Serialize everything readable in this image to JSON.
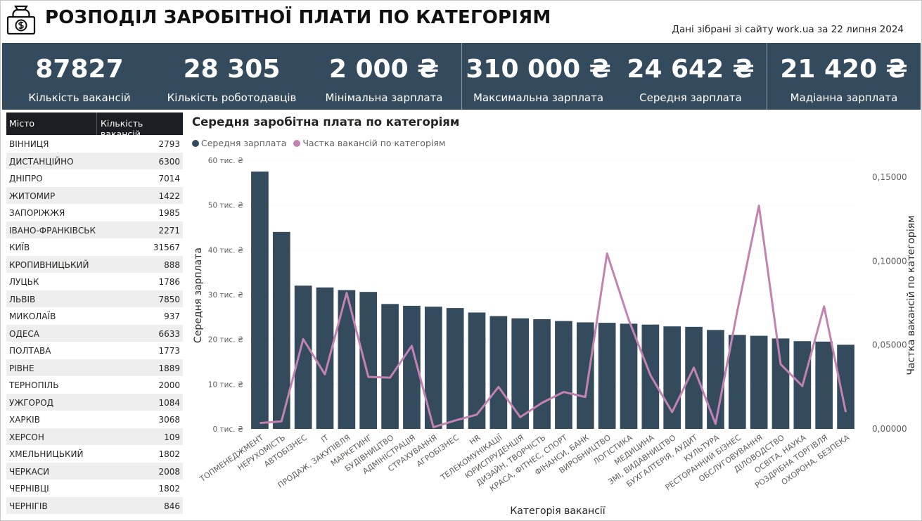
{
  "header": {
    "title": "РОЗПОДІЛ ЗАРОБІТНОЇ ПЛАТИ ПО КАТЕГОРІЯМ",
    "source": "Дані зібрані зі сайту work.ua за 22 липня 2024",
    "logo_icon": "money-bag-icon"
  },
  "kpis": [
    {
      "value": "87827",
      "label": "Кількість вакансій"
    },
    {
      "value": "28 305",
      "label": "Кількість роботодавців"
    },
    {
      "value": "2 000 ₴",
      "label": "Мінімальна зарплата"
    },
    {
      "value": "310 000 ₴",
      "label": "Максимальна зарплата"
    },
    {
      "value": "24 642 ₴",
      "label": "Середня зарплата"
    },
    {
      "value": "21 420 ₴",
      "label": "Мадіанна зарплата"
    }
  ],
  "city_table": {
    "headers": [
      "Місто",
      "Кількість вакансій"
    ],
    "rows": [
      {
        "city": "ВІННИЦЯ",
        "count": "2793"
      },
      {
        "city": "ДИСТАНЦІЙНО",
        "count": "6300"
      },
      {
        "city": "ДНІПРО",
        "count": "7014"
      },
      {
        "city": "ЖИТОМИР",
        "count": "1422"
      },
      {
        "city": "ЗАПОРІЖЖЯ",
        "count": "1985"
      },
      {
        "city": "ІВАНО-ФРАНКІВСЬК",
        "count": "2271"
      },
      {
        "city": "КИЇВ",
        "count": "31567"
      },
      {
        "city": "КРОПИВНИЦЬКИЙ",
        "count": "888"
      },
      {
        "city": "ЛУЦЬК",
        "count": "1786"
      },
      {
        "city": "ЛЬВІВ",
        "count": "7850"
      },
      {
        "city": "МИКОЛАЇВ",
        "count": "937"
      },
      {
        "city": "ОДЕСА",
        "count": "6633"
      },
      {
        "city": "ПОЛТАВА",
        "count": "1773"
      },
      {
        "city": "РІВНЕ",
        "count": "1889"
      },
      {
        "city": "ТЕРНОПІЛЬ",
        "count": "2000"
      },
      {
        "city": "УЖГОРОД",
        "count": "1084"
      },
      {
        "city": "ХАРКІВ",
        "count": "3068"
      },
      {
        "city": "ХЕРСОН",
        "count": "109"
      },
      {
        "city": "ХМЕЛЬНИЦЬКИЙ",
        "count": "1802"
      },
      {
        "city": "ЧЕРКАСИ",
        "count": "2008"
      },
      {
        "city": "ЧЕРНІВЦІ",
        "count": "1802"
      },
      {
        "city": "ЧЕРНІГІВ",
        "count": "846"
      }
    ]
  },
  "chart_data": {
    "type": "bar",
    "title": "Середня заробітна плата по категоріям",
    "xlabel": "Категорія вакансії",
    "ylabel": "Середня зарплата",
    "y2label": "Частка вакансій по категоріям",
    "ylim": [
      0,
      60000
    ],
    "y2lim": [
      0,
      0.16
    ],
    "yticks": [
      "0 тис. ₴",
      "10 тис. ₴",
      "20 тис. ₴",
      "30 тис. ₴",
      "40 тис. ₴",
      "50 тис. ₴",
      "60 тис. ₴"
    ],
    "y2ticks": [
      "0,00000",
      "0,05000",
      "0,10000",
      "0,15000"
    ],
    "legend_position": "top-left",
    "grid": true,
    "categories": [
      "ТОПМЕНЕДЖМЕНТ",
      "НЕРУХОМІСТЬ",
      "АВТОБІЗНЕС",
      "IT",
      "ПРОДАЖ, ЗАКУПІВЛЯ",
      "МАРКЕТИНГ",
      "БУДІВНИЦТВО",
      "АДМІНІСТРАЦІЯ",
      "СТРАХУВАННЯ",
      "АГРОБІЗНЕС",
      "HR",
      "ТЕЛЕКОМУНІКАЦІЇ",
      "ЮРИСПРУДЕНЦІЯ",
      "ДИЗАЙН, ТВОРЧІСТЬ",
      "КРАСА, ФІТНЕС, СПОРТ",
      "ФІНАНСИ, БАНК",
      "ВИРОБНИЦТВО",
      "ЛОГІСТИКА",
      "МЕДИЦИНА",
      "ЗМІ, ВИДАВНИЦТВО",
      "БУХГАЛТЕРІЯ, АУДИТ",
      "КУЛЬТУРА",
      "РЕСТОРАННИЙ БІЗНЕС",
      "ОБСЛУГОВУВАННЯ",
      "ДІЛОВОДСТВО",
      "ОСВІТА, НАУКА",
      "РОЗДРІБНА ТОРГІВЛЯ",
      "ОХОРОНА, БЕЗПЕКА"
    ],
    "series": [
      {
        "name": "Середня зарплата",
        "color": "#344a5d",
        "axis": "left",
        "kind": "bar",
        "values": [
          57500,
          44000,
          32000,
          31600,
          31000,
          30600,
          27900,
          27500,
          27300,
          27000,
          26000,
          25200,
          24700,
          24500,
          24100,
          23800,
          23700,
          23500,
          23300,
          22900,
          22800,
          22100,
          21000,
          20800,
          20200,
          19600,
          19500,
          18800
        ]
      },
      {
        "name": "Частка вакансій по категоріям",
        "color": "#c383b0",
        "axis": "right",
        "kind": "line",
        "values": [
          0.0035,
          0.0045,
          0.0535,
          0.0325,
          0.081,
          0.031,
          0.0305,
          0.0495,
          0.001,
          0.005,
          0.0085,
          0.025,
          0.007,
          0.0155,
          0.022,
          0.019,
          0.1045,
          0.065,
          0.032,
          0.01,
          0.0365,
          0.003,
          0.07,
          0.133,
          0.0385,
          0.0255,
          0.073,
          0.01
        ]
      }
    ]
  }
}
